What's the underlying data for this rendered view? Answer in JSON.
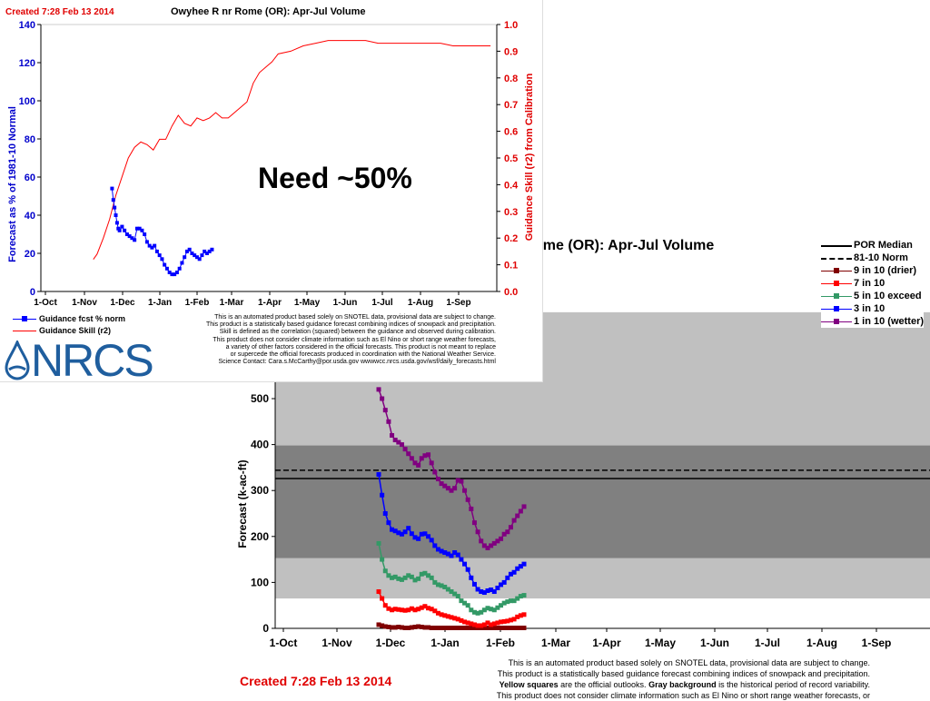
{
  "need_note": "Need ~50%",
  "chart_data": [
    {
      "type": "line",
      "title": "Owyhee R nr Rome (OR): Apr-Jul Volume",
      "created": "Created 7:28 Feb 13 2014",
      "ylabel": "Forecast as % of 1981-10 Normal",
      "y2label": "Guidance Skill (r2) from Calibration",
      "ylim": [
        0,
        140
      ],
      "y2lim": [
        0,
        1.0
      ],
      "yticks": [
        "0",
        "20",
        "40",
        "60",
        "80",
        "100",
        "120",
        "140"
      ],
      "y2ticks": [
        "0.0",
        "0.1",
        "0.2",
        "0.3",
        "0.4",
        "0.5",
        "0.6",
        "0.7",
        "0.8",
        "0.9",
        "1.0"
      ],
      "xticks": [
        "1-Oct",
        "1-Nov",
        "1-Dec",
        "1-Jan",
        "1-Feb",
        "1-Mar",
        "1-Apr",
        "1-May",
        "1-Jun",
        "1-Jul",
        "1-Aug",
        "1-Sep"
      ],
      "colors": {
        "fcst": "#0000ff",
        "skill": "#ff0000"
      },
      "legend": [
        "Guidance fcst % norm",
        "Guidance Skill (r2)"
      ],
      "series": [
        {
          "name": "Guidance fcst % norm",
          "axis": "left",
          "marker": "square",
          "x": [
            57,
            58,
            59,
            60,
            61,
            62,
            63,
            65,
            67,
            69,
            71,
            73,
            75,
            77,
            79,
            81,
            83,
            85,
            87,
            89,
            91,
            93,
            95,
            97,
            99,
            101,
            103,
            105,
            107,
            109,
            111,
            113,
            115,
            117,
            119,
            121,
            123,
            125,
            127,
            129,
            131,
            133,
            135,
            137
          ],
          "y": [
            54,
            48,
            44,
            40,
            36,
            33,
            32,
            34,
            32,
            30,
            29,
            28,
            27,
            33,
            33,
            32,
            30,
            26,
            24,
            23,
            24,
            21,
            19,
            17,
            14,
            12,
            10,
            9,
            9,
            10,
            12,
            15,
            18,
            21,
            22,
            20,
            19,
            18,
            17,
            19,
            21,
            20,
            21,
            22
          ]
        },
        {
          "name": "Guidance Skill (r2)",
          "axis": "right",
          "marker": "none",
          "x": [
            42,
            45,
            50,
            55,
            60,
            65,
            70,
            75,
            80,
            85,
            90,
            95,
            100,
            105,
            110,
            115,
            120,
            125,
            130,
            135,
            140,
            145,
            150,
            155,
            160,
            165,
            170,
            175,
            180,
            185,
            190,
            200,
            210,
            220,
            230,
            240,
            250,
            260,
            270,
            280,
            290,
            300,
            310,
            320,
            330,
            340,
            350,
            360
          ],
          "y": [
            0.12,
            0.14,
            0.2,
            0.27,
            0.36,
            0.43,
            0.5,
            0.54,
            0.56,
            0.55,
            0.53,
            0.57,
            0.57,
            0.62,
            0.66,
            0.63,
            0.62,
            0.65,
            0.64,
            0.65,
            0.67,
            0.65,
            0.65,
            0.67,
            0.69,
            0.71,
            0.78,
            0.82,
            0.84,
            0.86,
            0.89,
            0.9,
            0.92,
            0.93,
            0.94,
            0.94,
            0.94,
            0.94,
            0.93,
            0.93,
            0.93,
            0.93,
            0.93,
            0.93,
            0.92,
            0.92,
            0.92,
            0.92
          ]
        }
      ]
    },
    {
      "type": "line",
      "title": "ome (OR): Apr-Jul Volume",
      "created": "Created 7:28 Feb 13 2014",
      "ylabel": "Forecast (k-ac-ft)",
      "ylim": [
        0,
        750
      ],
      "yticks": [
        "0",
        "100",
        "200",
        "300",
        "400",
        "500"
      ],
      "xticks": [
        "1-Oct",
        "1-Nov",
        "1-Dec",
        "1-Jan",
        "1-Feb",
        "1-Mar",
        "1-Apr",
        "1-May",
        "1-Jun",
        "1-Jul",
        "1-Aug",
        "1-Sep"
      ],
      "bands": [
        {
          "from": 65,
          "to": 688,
          "color": "#c0c0c0"
        },
        {
          "from": 153,
          "to": 398,
          "color": "#808080"
        }
      ],
      "reference_lines": [
        {
          "name": "POR Median",
          "y": 326,
          "style": "solid",
          "color": "#000000"
        },
        {
          "name": "81-10 Norm",
          "y": 344,
          "style": "dashed",
          "color": "#000000"
        }
      ],
      "series": [
        {
          "name": "9 in 10 (drier)",
          "color": "#800000",
          "y": [
            8,
            6,
            4,
            3,
            2,
            2,
            3,
            2,
            1,
            1,
            2,
            3,
            4,
            3,
            2,
            2,
            1,
            1,
            1,
            1,
            1,
            1,
            1,
            1,
            1,
            1,
            1,
            1,
            1,
            1,
            1,
            1,
            1,
            1,
            1,
            1,
            1,
            1,
            1,
            1,
            1,
            1,
            1,
            1,
            1
          ]
        },
        {
          "name": "7 in 10",
          "color": "#ff0000",
          "y": [
            80,
            65,
            50,
            43,
            40,
            42,
            41,
            40,
            39,
            40,
            43,
            40,
            42,
            45,
            48,
            44,
            42,
            38,
            33,
            30,
            28,
            26,
            24,
            22,
            20,
            17,
            14,
            12,
            10,
            8,
            6,
            6,
            8,
            12,
            8,
            10,
            12,
            14,
            15,
            16,
            18,
            20,
            25,
            28,
            30
          ]
        },
        {
          "name": "5 in 10 exceed",
          "color": "#339966",
          "y": [
            185,
            150,
            125,
            115,
            110,
            112,
            108,
            106,
            110,
            115,
            112,
            105,
            108,
            118,
            120,
            115,
            110,
            100,
            95,
            93,
            90,
            85,
            80,
            75,
            70,
            60,
            55,
            50,
            40,
            35,
            33,
            35,
            40,
            44,
            42,
            40,
            45,
            50,
            55,
            58,
            60,
            60,
            65,
            70,
            72
          ]
        },
        {
          "name": "3 in 10",
          "color": "#0000ff",
          "y": [
            335,
            290,
            250,
            230,
            215,
            212,
            208,
            205,
            210,
            218,
            206,
            198,
            195,
            205,
            206,
            200,
            192,
            180,
            172,
            168,
            165,
            162,
            158,
            165,
            160,
            150,
            140,
            128,
            110,
            96,
            85,
            80,
            78,
            82,
            84,
            80,
            88,
            95,
            100,
            110,
            118,
            122,
            130,
            135,
            140
          ]
        },
        {
          "name": "1 in 10 (wetter)",
          "color": "#800080",
          "y": [
            520,
            500,
            475,
            450,
            420,
            410,
            405,
            400,
            390,
            380,
            370,
            360,
            355,
            370,
            376,
            378,
            360,
            340,
            325,
            315,
            310,
            305,
            300,
            305,
            322,
            320,
            300,
            280,
            260,
            230,
            210,
            190,
            180,
            175,
            180,
            185,
            190,
            195,
            205,
            210,
            220,
            235,
            245,
            255,
            265
          ]
        }
      ],
      "legend": [
        "POR Median",
        "81-10 Norm",
        "9 in 10 (drier)",
        "7 in 10",
        "5 in 10 exceed",
        "3 in 10",
        "1 in 10 (wetter)"
      ]
    }
  ],
  "disclaimer1": [
    "This is an automated product based solely on SNOTEL data, provisional data are subject to change.",
    "This product is a statistically based guidance forecast combining indices of snowpack and precipitation.",
    "Skill is defined as the correlation (squared) between the guidance and observed during calibration.",
    "This product does not consider climate information such as El Nino or short range weather forecasts,",
    "a variety of other factors considered in the official forecasts. This product is not meant to replace",
    "or supercede the official forecasts produced in coordination with the National Weather Service.",
    "Science Contact: Cara.s.McCarthy@por.usda.gov wwwwcc.nrcs.usda.gov/wsf/daily_forecasts.html"
  ],
  "disclaimer2": {
    "line1": "This is an automated product based solely on SNOTEL data, provisional data are subject to change.",
    "line2": "This product is a statistically based guidance forecast combining indices of snowpack and precipitation.",
    "line3_bold": "Yellow squares",
    "line3_rest": " are the official outlooks. ",
    "line3_bold2": "Gray background",
    "line3_rest2": " is the historical period of record variability.",
    "line4": "This product does not consider climate information such as El Nino or short range weather forecasts, or"
  },
  "logo": {
    "text": "NRCS",
    "color": "#1f5e9e"
  }
}
